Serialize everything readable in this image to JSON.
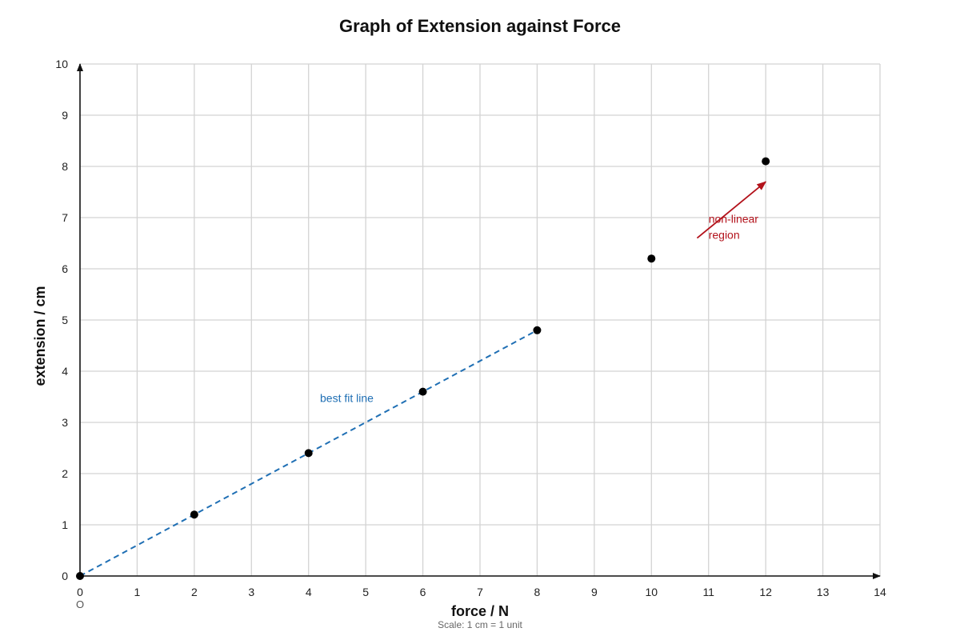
{
  "chart_data": {
    "type": "scatter",
    "title": "Graph of Extension against Force",
    "xlabel": "force / N",
    "ylabel": "extension / cm",
    "xlim": [
      0,
      14
    ],
    "ylim": [
      0,
      10
    ],
    "x_ticks": [
      "0",
      "1",
      "2",
      "3",
      "4",
      "5",
      "6",
      "7",
      "8",
      "9",
      "10",
      "11",
      "12",
      "13",
      "14"
    ],
    "y_ticks": [
      "0",
      "1",
      "2",
      "3",
      "4",
      "5",
      "6",
      "7",
      "8",
      "9",
      "10"
    ],
    "grid": true,
    "origin_label": "O",
    "scale_note": "Scale: 1 cm = 1 unit",
    "series": [
      {
        "points": [
          {
            "x": 0,
            "y": 0
          },
          {
            "x": 2,
            "y": 1.2
          },
          {
            "x": 4,
            "y": 2.4
          },
          {
            "x": 6,
            "y": 3.6
          },
          {
            "x": 8,
            "y": 4.8
          },
          {
            "x": 10,
            "y": 6.2
          },
          {
            "x": 12,
            "y": 8.1
          }
        ],
        "color": "#000000"
      }
    ],
    "best_fit": {
      "from": {
        "x": 0,
        "y": 0
      },
      "to": {
        "x": 8,
        "y": 4.8
      },
      "label": "best fit line",
      "color": "#1f6fb4"
    },
    "annotations": [
      {
        "lines": [
          "non-linear",
          "region"
        ],
        "text_at": {
          "x": 11.0,
          "y": 6.9
        },
        "arrow_from": {
          "x": 10.8,
          "y": 6.6
        },
        "arrow_to": {
          "x": 12.0,
          "y": 7.7
        },
        "color": "#b3121b"
      }
    ]
  }
}
